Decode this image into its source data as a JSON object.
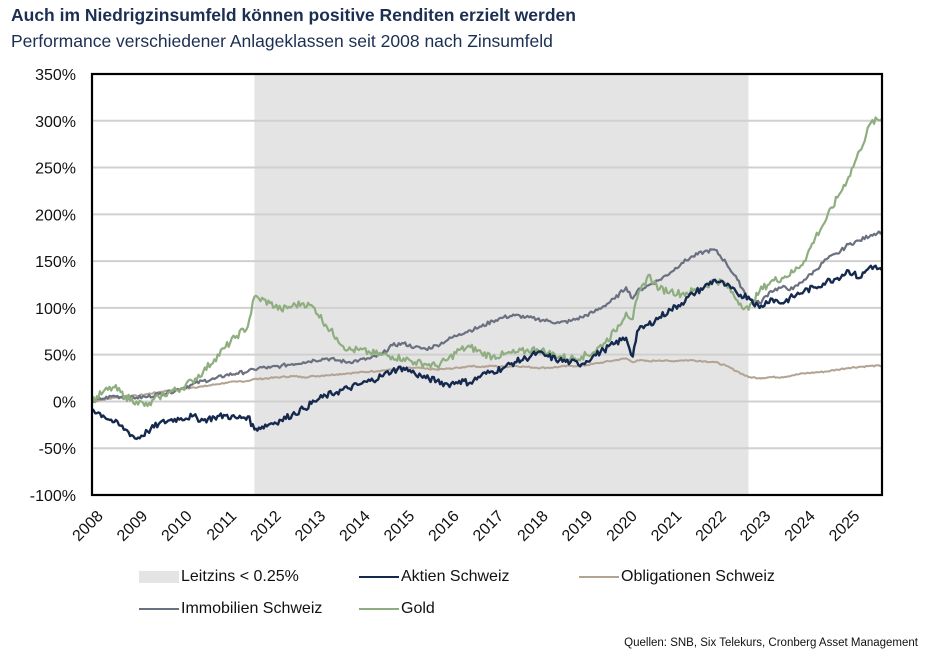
{
  "header": {
    "title": "Auch im Niedrigzinsumfeld können positive Renditen erzielt werden",
    "subtitle": "Performance verschiedener Anlageklassen seit 2008 nach Zinsumfeld"
  },
  "source": "Quellen: SNB, Six Telekurs, Cronberg Asset Management",
  "colors": {
    "aktien": "#14294d",
    "obligationen": "#b3a393",
    "immobilien": "#6b7080",
    "gold": "#8fae80",
    "shade": "#e4e4e4",
    "grid": "#d0d0d0"
  },
  "chart_data": {
    "type": "line",
    "title": "Auch im Niedrigzinsumfeld können positive Renditen erzielt werden",
    "subtitle": "Performance verschiedener Anlageklassen seit 2008 nach Zinsumfeld",
    "xlabel": "",
    "ylabel": "",
    "xlim": [
      2008,
      2025.75
    ],
    "ylim": [
      -100,
      350
    ],
    "yticks": [
      -100,
      -50,
      0,
      50,
      100,
      150,
      200,
      250,
      300,
      350
    ],
    "ytick_labels": [
      "-100%",
      "-50%",
      "0%",
      "50%",
      "100%",
      "150%",
      "200%",
      "250%",
      "300%",
      "350%"
    ],
    "xticks": [
      2008,
      2009,
      2010,
      2011,
      2012,
      2013,
      2014,
      2015,
      2016,
      2017,
      2018,
      2019,
      2020,
      2021,
      2022,
      2023,
      2024,
      2025
    ],
    "xtick_labels": [
      "2008",
      "2009",
      "2010",
      "2011",
      "2012",
      "2013",
      "2014",
      "2015",
      "2016",
      "2017",
      "2018",
      "2019",
      "2020",
      "2021",
      "2022",
      "2023",
      "2024",
      "2025"
    ],
    "grid": true,
    "legend_position": "bottom",
    "shaded_regions": [
      {
        "label": "Leitzins < 0.25%",
        "x_start": 2011.65,
        "x_end": 2022.75
      }
    ],
    "x": [
      2008.0,
      2008.25,
      2008.5,
      2008.75,
      2009.0,
      2009.25,
      2009.5,
      2009.75,
      2010.0,
      2010.25,
      2010.5,
      2010.75,
      2011.0,
      2011.25,
      2011.5,
      2011.65,
      2011.75,
      2012.0,
      2012.25,
      2012.5,
      2012.75,
      2013.0,
      2013.25,
      2013.5,
      2013.75,
      2014.0,
      2014.25,
      2014.5,
      2014.75,
      2015.0,
      2015.25,
      2015.5,
      2015.75,
      2016.0,
      2016.25,
      2016.5,
      2016.75,
      2017.0,
      2017.25,
      2017.5,
      2017.75,
      2018.0,
      2018.25,
      2018.5,
      2018.75,
      2019.0,
      2019.25,
      2019.5,
      2019.75,
      2020.0,
      2020.15,
      2020.25,
      2020.5,
      2020.75,
      2021.0,
      2021.25,
      2021.5,
      2021.75,
      2022.0,
      2022.25,
      2022.5,
      2022.75,
      2023.0,
      2023.25,
      2023.5,
      2023.75,
      2024.0,
      2024.25,
      2024.5,
      2024.75,
      2025.0,
      2025.25,
      2025.5,
      2025.75
    ],
    "series": [
      {
        "name": "Aktien Schweiz",
        "values": [
          -8,
          -15,
          -22,
          -30,
          -40,
          -32,
          -24,
          -20,
          -18,
          -16,
          -20,
          -17,
          -15,
          -18,
          -16,
          -30,
          -28,
          -24,
          -20,
          -14,
          -8,
          0,
          6,
          10,
          14,
          18,
          22,
          27,
          33,
          36,
          30,
          25,
          22,
          18,
          22,
          20,
          28,
          32,
          36,
          42,
          46,
          52,
          48,
          44,
          42,
          40,
          48,
          55,
          62,
          68,
          48,
          75,
          82,
          90,
          98,
          105,
          115,
          122,
          130,
          124,
          115,
          112,
          100,
          110,
          105,
          112,
          118,
          122,
          128,
          132,
          140,
          132,
          145,
          140
        ]
      },
      {
        "name": "Obligationen Schweiz",
        "values": [
          0,
          2,
          4,
          6,
          6,
          8,
          10,
          12,
          13,
          15,
          16,
          18,
          20,
          21,
          22,
          24,
          24,
          25,
          26,
          27,
          26,
          27,
          28,
          29,
          30,
          31,
          32,
          33,
          34,
          35,
          36,
          35,
          34,
          35,
          36,
          38,
          37,
          38,
          37,
          38,
          37,
          36,
          36,
          37,
          38,
          38,
          40,
          42,
          44,
          46,
          42,
          44,
          43,
          44,
          43,
          44,
          44,
          43,
          42,
          38,
          32,
          26,
          25,
          26,
          26,
          28,
          30,
          31,
          32,
          34,
          36,
          37,
          38,
          38
        ]
      },
      {
        "name": "Immobilien Schweiz",
        "values": [
          0,
          3,
          6,
          4,
          4,
          5,
          8,
          10,
          14,
          18,
          22,
          24,
          28,
          30,
          32,
          34,
          36,
          36,
          38,
          40,
          42,
          44,
          46,
          44,
          42,
          44,
          46,
          50,
          60,
          62,
          58,
          56,
          60,
          66,
          72,
          76,
          80,
          86,
          90,
          92,
          90,
          88,
          86,
          84,
          86,
          90,
          95,
          102,
          110,
          122,
          110,
          118,
          124,
          130,
          138,
          148,
          155,
          160,
          162,
          148,
          130,
          110,
          105,
          118,
          122,
          120,
          130,
          140,
          152,
          158,
          168,
          172,
          178,
          182
        ]
      },
      {
        "name": "Gold",
        "values": [
          0,
          10,
          15,
          5,
          0,
          -5,
          5,
          10,
          14,
          22,
          32,
          45,
          58,
          70,
          80,
          112,
          110,
          105,
          98,
          102,
          105,
          100,
          82,
          68,
          55,
          55,
          52,
          50,
          48,
          46,
          42,
          40,
          38,
          45,
          55,
          58,
          52,
          48,
          50,
          52,
          54,
          56,
          52,
          48,
          46,
          48,
          52,
          62,
          75,
          95,
          88,
          110,
          135,
          120,
          118,
          115,
          118,
          122,
          130,
          125,
          108,
          98,
          118,
          128,
          132,
          138,
          150,
          175,
          195,
          218,
          240,
          268,
          298,
          302
        ]
      }
    ]
  },
  "legend": [
    {
      "label": "Leitzins < 0.25%",
      "kind": "box",
      "color_key": "shade"
    },
    {
      "label": "Aktien Schweiz",
      "kind": "line",
      "color_key": "aktien"
    },
    {
      "label": "Obligationen Schweiz",
      "kind": "line",
      "color_key": "obligationen"
    },
    {
      "label": "Immobilien Schweiz",
      "kind": "line",
      "color_key": "immobilien"
    },
    {
      "label": "Gold",
      "kind": "line",
      "color_key": "gold"
    }
  ]
}
